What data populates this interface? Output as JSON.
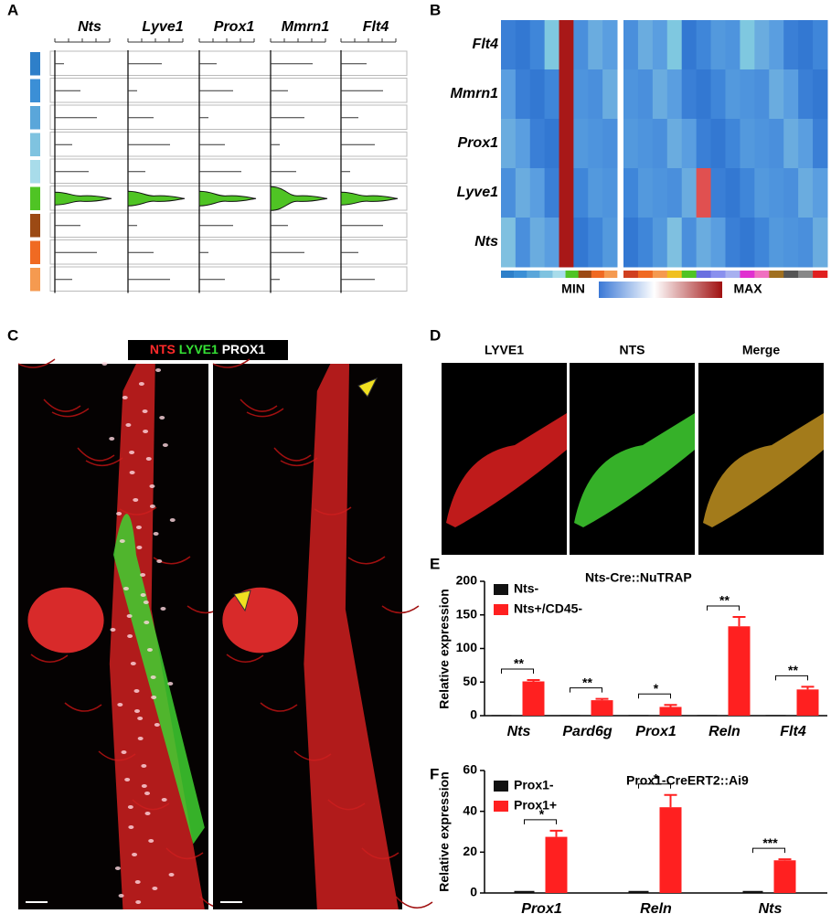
{
  "panel_labels": [
    "A",
    "B",
    "C",
    "D",
    "E",
    "F"
  ],
  "panel_a": {
    "genes": [
      "Nts",
      "Lyve1",
      "Prox1",
      "Mmrn1",
      "Flt4"
    ]
  },
  "panel_b": {
    "genes": [
      "Flt4",
      "Mmrn1",
      "Prox1",
      "Lyve1",
      "Nts"
    ],
    "scale_min": "MIN",
    "scale_max": "MAX"
  },
  "panel_c": {
    "stains": [
      {
        "text": "NTS",
        "color": "#ff2a2a"
      },
      {
        "text": "LYVE1",
        "color": "#35e035"
      },
      {
        "text": "PROX1",
        "color": "#ffffff"
      }
    ]
  },
  "panel_d": {
    "columns": [
      "LYVE1",
      "NTS",
      "Merge"
    ]
  },
  "chart_data": [
    {
      "type": "bar",
      "title": "Nts-Cre::NuTRAP",
      "y_label": "Relative expression",
      "categories": [
        "Nts",
        "Pard6g",
        "Prox1",
        "Reln",
        "Flt4"
      ],
      "series": [
        {
          "name": "Nts-",
          "color": "#111111",
          "values": [
            1,
            1,
            1,
            1,
            1
          ]
        },
        {
          "name": "Nts+/CD45-",
          "color": "#ff2020",
          "values": [
            51,
            23,
            13,
            133,
            39
          ],
          "errors": [
            2,
            2,
            3,
            14,
            4
          ]
        }
      ],
      "significance": [
        "**",
        "**",
        "*",
        "**",
        "**"
      ],
      "ylim": [
        0,
        200
      ],
      "yticks": [
        0,
        50,
        100,
        150,
        200
      ],
      "legend": "top-left"
    },
    {
      "type": "bar",
      "title": "Prox1-CreERT2::Ai9",
      "y_label": "Relative expression",
      "categories": [
        "Prox1",
        "Reln",
        "Nts"
      ],
      "series": [
        {
          "name": "Prox1-",
          "color": "#111111",
          "values": [
            1,
            1,
            1
          ]
        },
        {
          "name": "Prox1+",
          "color": "#ff2020",
          "values": [
            27.5,
            42,
            16
          ],
          "errors": [
            3,
            6,
            0.5
          ]
        }
      ],
      "significance": [
        "*",
        "*",
        "***"
      ],
      "ylim": [
        0,
        60
      ],
      "yticks": [
        0,
        20,
        40,
        60
      ],
      "legend": "top-left"
    }
  ]
}
